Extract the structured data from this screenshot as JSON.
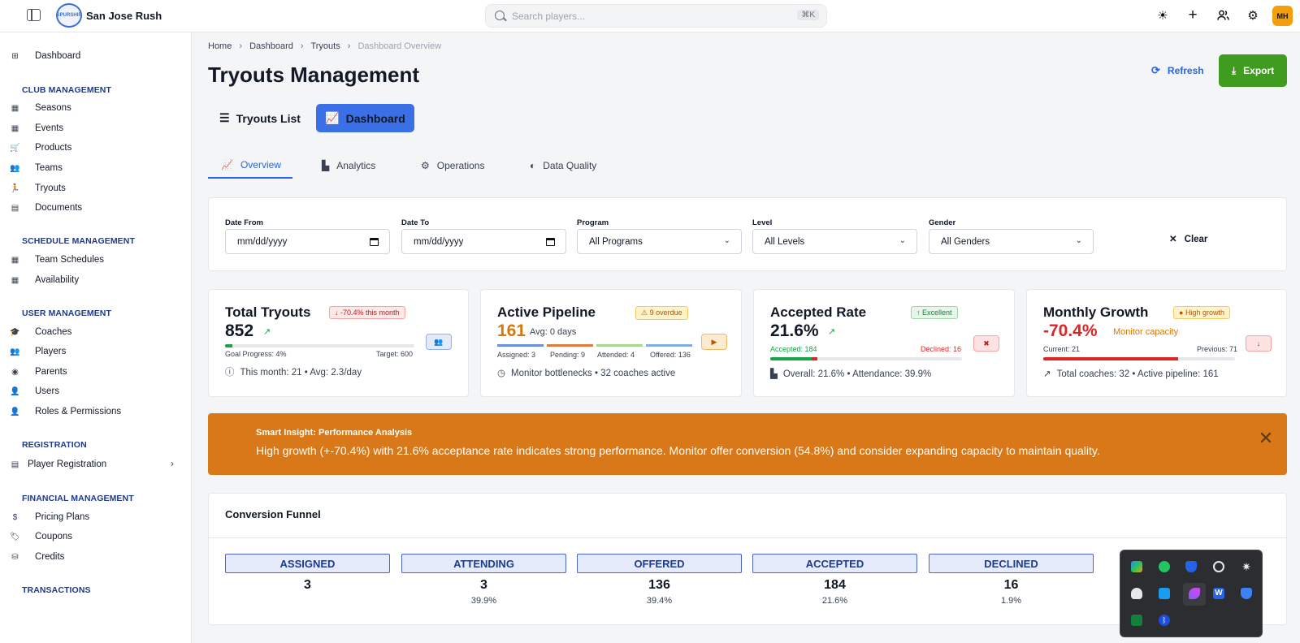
{
  "header": {
    "brand": "San Jose Rush",
    "logo_text": "SPURSHIP",
    "search_placeholder": "Search players...",
    "search_shortcut": "⌘K",
    "avatar_initials": "MH"
  },
  "sidebar": {
    "dashboard": "Dashboard",
    "sections": [
      {
        "title": "CLUB MANAGEMENT",
        "items": [
          "Seasons",
          "Events",
          "Products",
          "Teams",
          "Tryouts",
          "Documents"
        ]
      },
      {
        "title": "SCHEDULE MANAGEMENT",
        "items": [
          "Team Schedules",
          "Availability"
        ]
      },
      {
        "title": "USER MANAGEMENT",
        "items": [
          "Coaches",
          "Players",
          "Parents",
          "Users",
          "Roles & Permissions"
        ]
      },
      {
        "title": "REGISTRATION",
        "items": [
          "Player Registration"
        ]
      },
      {
        "title": "FINANCIAL MANAGEMENT",
        "items": [
          "Pricing Plans",
          "Coupons",
          "Credits"
        ]
      },
      {
        "title": "TRANSACTIONS",
        "items": []
      }
    ]
  },
  "breadcrumb": [
    "Home",
    "Dashboard",
    "Tryouts",
    "Dashboard Overview"
  ],
  "page": {
    "title": "Tryouts Management",
    "refresh": "Refresh",
    "export": "Export"
  },
  "view_tabs": [
    "Tryouts List",
    "Dashboard"
  ],
  "sub_tabs": [
    "Overview",
    "Analytics",
    "Operations",
    "Data Quality"
  ],
  "filters": {
    "date_from": {
      "label": "Date From",
      "value": "mm/dd/yyyy"
    },
    "date_to": {
      "label": "Date To",
      "value": "mm/dd/yyyy"
    },
    "program": {
      "label": "Program",
      "value": "All Programs"
    },
    "level": {
      "label": "Level",
      "value": "All Levels"
    },
    "gender": {
      "label": "Gender",
      "value": "All Genders"
    },
    "clear": "Clear"
  },
  "stats": {
    "total": {
      "title": "Total Tryouts",
      "badge": "-70.4% this month",
      "value": "852",
      "progress_label": "Goal Progress: 4%",
      "target": "Target: 600",
      "progress": 0.04,
      "footer": "This month: 21 • Avg: 2.3/day"
    },
    "pipeline": {
      "title": "Active Pipeline",
      "badge": "9 overdue",
      "value": "161",
      "avg": "Avg: 0 days",
      "segments": [
        "Assigned: 3",
        "Pending: 9",
        "Attended: 4",
        "Offered: 136"
      ],
      "footer": "Monitor bottlenecks • 32 coaches active"
    },
    "accepted": {
      "title": "Accepted Rate",
      "badge": "Excellent",
      "value": "21.6%",
      "accepted": "Accepted: 184",
      "declined": "Declined: 16",
      "progress": 0.216,
      "footer": "Overall: 21.6% • Attendance: 39.9%"
    },
    "growth": {
      "title": "Monthly Growth",
      "badge": "High growth",
      "value": "-70.4%",
      "note": "Monitor capacity",
      "current": "Current: 21",
      "previous": "Previous: 71",
      "progress": 0.704,
      "footer": "Total coaches: 32 • Active pipeline: 161"
    }
  },
  "insight": {
    "title": "Smart Insight: Performance Analysis",
    "message": "High growth (+-70.4%) with 21.6% acceptance rate indicates strong performance. Monitor offer conversion (54.8%) and consider expanding capacity to maintain quality."
  },
  "funnel": {
    "title": "Conversion Funnel",
    "stages": [
      {
        "label": "ASSIGNED",
        "value": "3",
        "pct": ""
      },
      {
        "label": "ATTENDING",
        "value": "3",
        "pct": "39.9%"
      },
      {
        "label": "OFFERED",
        "value": "136",
        "pct": "39.4%"
      },
      {
        "label": "ACCEPTED",
        "value": "184",
        "pct": "21.6%"
      },
      {
        "label": "DECLINED",
        "value": "16",
        "pct": "1.9%"
      }
    ]
  },
  "colors": {
    "primary": "#3b6fe6",
    "export": "#3f9c1f",
    "insight": "#d97818",
    "danger": "#dc2626",
    "warning": "#d97706"
  }
}
